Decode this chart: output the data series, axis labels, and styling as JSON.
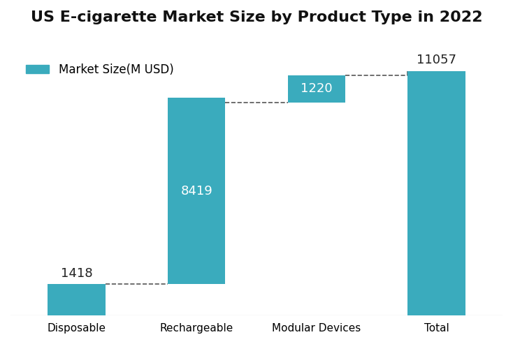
{
  "title": "US E-cigarette Market Size by Product Type in 2022",
  "categories": [
    "Disposable",
    "Rechargeable",
    "Modular Devices",
    "Total"
  ],
  "values": [
    1418,
    8419,
    1220,
    11057
  ],
  "bar_bottoms": [
    0,
    1418,
    9639,
    0
  ],
  "bar_color": "#3aabbd",
  "label_color_inside": "#ffffff",
  "label_color_outside": "#222222",
  "legend_label": "Market Size(M USD)",
  "figsize": [
    7.34,
    4.93
  ],
  "dpi": 100,
  "ylim": [
    0,
    12500
  ],
  "background_color": "#ffffff",
  "title_fontsize": 16,
  "tick_fontsize": 11,
  "bar_label_fontsize": 13,
  "legend_fontsize": 12,
  "dashed_line_color": "#555555"
}
